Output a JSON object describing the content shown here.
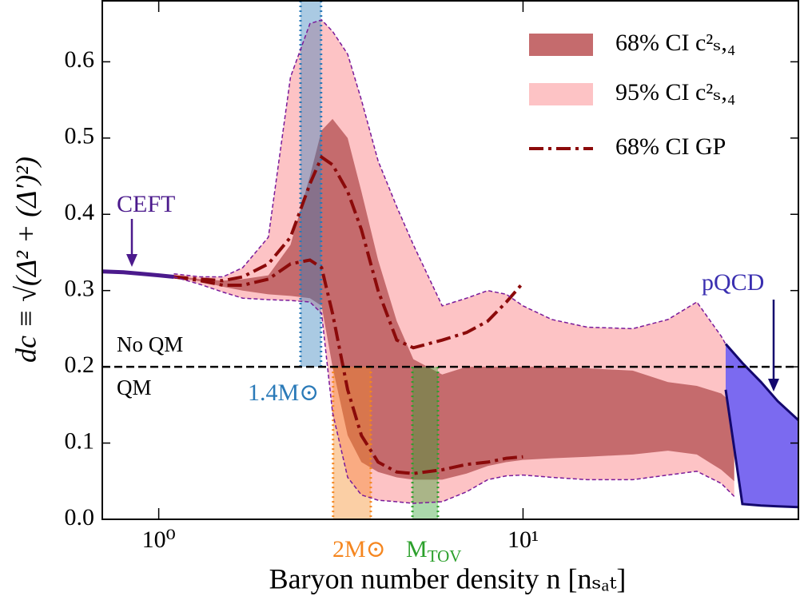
{
  "chart_data": {
    "type": "line",
    "xlabel": "Baryon number density n [nₛₐₜ]",
    "ylabel": "dc ≡ √(Δ² + (Δ′)²)",
    "xscale": "log",
    "xlim": [
      0.7,
      57
    ],
    "ylim": [
      0,
      0.68
    ],
    "xticks": [
      {
        "value": 1,
        "label": "10⁰"
      },
      {
        "value": 10,
        "label": "10¹"
      }
    ],
    "yticks": [
      {
        "value": 0,
        "label": "0.0"
      },
      0.1,
      0.2,
      0.3,
      0.4,
      0.5,
      0.6
    ],
    "legend": "upper right",
    "x": [
      1.1,
      1.3,
      1.5,
      1.7,
      2,
      2.3,
      2.6,
      2.8,
      3,
      3.3,
      3.6,
      4,
      4.5,
      5,
      6,
      7,
      8,
      9,
      10,
      12,
      15,
      20,
      25,
      30,
      35,
      38
    ],
    "series": [
      {
        "name": "68% CI c²ₛ,₄",
        "color": "#c56b6d",
        "upper": [
          0.32,
          0.315,
          0.313,
          0.315,
          0.32,
          0.36,
          0.45,
          0.51,
          0.525,
          0.5,
          0.43,
          0.34,
          0.26,
          0.21,
          0.19,
          0.2,
          0.2,
          0.2,
          0.2,
          0.2,
          0.198,
          0.195,
          0.18,
          0.175,
          0.165,
          0.15
        ],
        "lower": [
          0.318,
          0.312,
          0.305,
          0.3,
          0.295,
          0.293,
          0.29,
          0.28,
          0.2,
          0.11,
          0.075,
          0.062,
          0.055,
          0.052,
          0.052,
          0.06,
          0.07,
          0.075,
          0.078,
          0.08,
          0.082,
          0.085,
          0.09,
          0.085,
          0.065,
          0.05
        ]
      },
      {
        "name": "95% CI c²ₛ,₄",
        "color": "#fdc3c5",
        "edge_color": "#7a1a9a",
        "upper": [
          0.322,
          0.318,
          0.318,
          0.33,
          0.37,
          0.58,
          0.65,
          0.655,
          0.64,
          0.61,
          0.55,
          0.47,
          0.41,
          0.36,
          0.28,
          0.29,
          0.3,
          0.295,
          0.28,
          0.262,
          0.252,
          0.25,
          0.262,
          0.285,
          0.24,
          0.21
        ],
        "lower": [
          0.318,
          0.308,
          0.298,
          0.29,
          0.288,
          0.287,
          0.285,
          0.27,
          0.14,
          0.055,
          0.032,
          0.025,
          0.023,
          0.021,
          0.023,
          0.036,
          0.052,
          0.057,
          0.058,
          0.055,
          0.052,
          0.052,
          0.058,
          0.063,
          0.047,
          0.03
        ]
      }
    ],
    "gp": {
      "name": "68% CI GP",
      "color": "#8b0a0a",
      "x": [
        1.1,
        1.3,
        1.5,
        1.7,
        2,
        2.3,
        2.6,
        2.8,
        3,
        3.3,
        3.6,
        4,
        4.5,
        5,
        6,
        7,
        8,
        9,
        10
      ],
      "upper": [
        0.318,
        0.315,
        0.313,
        0.318,
        0.335,
        0.37,
        0.44,
        0.475,
        0.465,
        0.43,
        0.38,
        0.3,
        0.235,
        0.225,
        0.235,
        0.245,
        0.26,
        0.285,
        0.31
      ],
      "lower": [
        0.318,
        0.313,
        0.307,
        0.307,
        0.315,
        0.335,
        0.34,
        0.33,
        0.27,
        0.17,
        0.11,
        0.075,
        0.062,
        0.06,
        0.065,
        0.072,
        0.075,
        0.08,
        0.082
      ]
    },
    "ceft": {
      "label": "CEFT",
      "color": "#4b1a8c",
      "x": [
        0.7,
        0.8,
        0.9,
        1.0,
        1.1
      ],
      "values": [
        0.325,
        0.324,
        0.322,
        0.32,
        0.318
      ]
    },
    "pqcd": {
      "label": "pQCD",
      "color": "#7b6af0",
      "edge_color": "#14086e",
      "x": [
        36,
        40,
        45,
        50,
        57
      ],
      "upper": [
        0.23,
        0.205,
        0.18,
        0.155,
        0.13
      ],
      "lower": [
        0.17,
        0.02,
        0.018,
        0.017,
        0.016
      ]
    },
    "threshold": {
      "value": 0.2,
      "above_label": "No QM",
      "below_label": "QM"
    },
    "regions": [
      {
        "label": "1.4M⊙",
        "range": [
          2.45,
          2.79
        ],
        "side": "above",
        "color": "#2a7ab8"
      },
      {
        "label": "2M⊙",
        "range": [
          3.01,
          3.82
        ],
        "side": "below",
        "color": "#f5861f"
      },
      {
        "label": "M",
        "subscript": "TOV",
        "range": [
          4.97,
          5.84
        ],
        "side": "below",
        "color": "#2ca02c"
      }
    ]
  }
}
